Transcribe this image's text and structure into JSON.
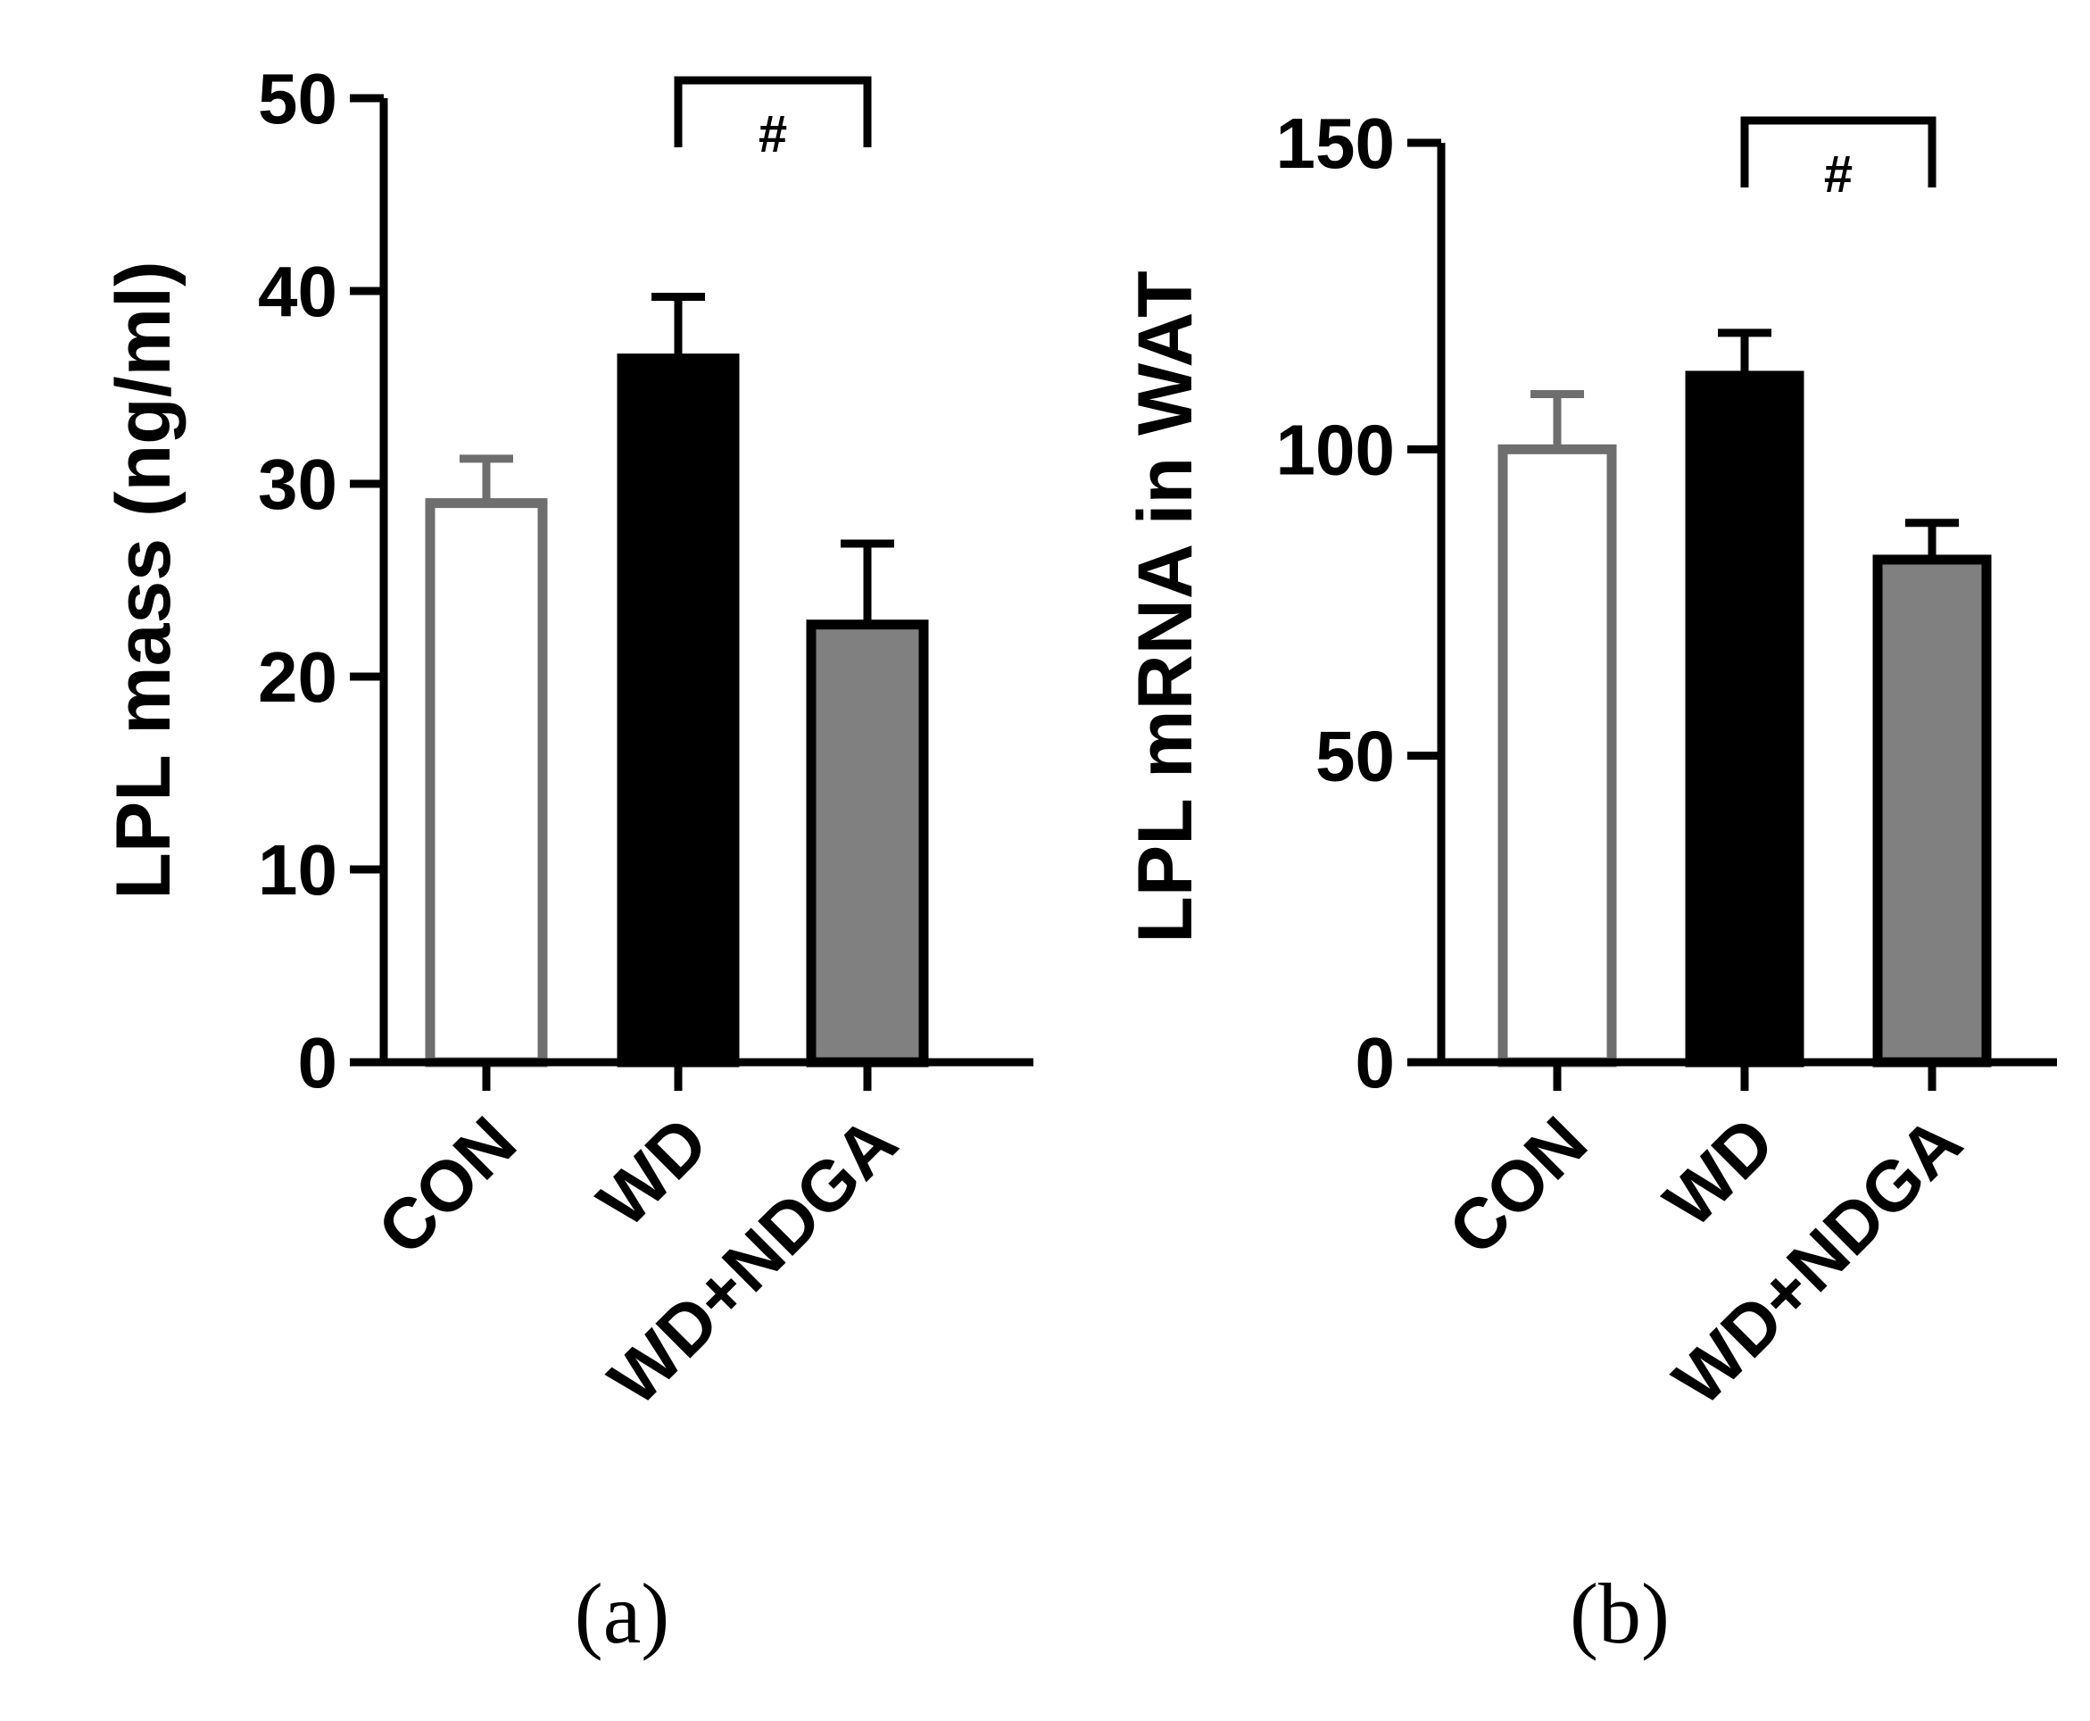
{
  "chart_data": [
    {
      "panel_label": "(a)",
      "type": "bar",
      "ylabel": "LPL mass (ng/ml)",
      "categories": [
        "CON",
        "WD",
        "WD+NDGA"
      ],
      "values": [
        29,
        36.5,
        22.7
      ],
      "errors": [
        2.3,
        3.2,
        4.2
      ],
      "ylim": [
        0,
        50
      ],
      "yticks": [
        "0",
        "10",
        "20",
        "30",
        "40",
        "50"
      ],
      "tick_values": [
        0,
        10,
        20,
        30,
        40,
        50
      ],
      "significance": {
        "from": "WD",
        "to": "WD+NDGA",
        "label": "#"
      },
      "bar_fill": [
        "#ffffff",
        "#000000",
        "#808080"
      ],
      "bar_stroke": [
        "#6e6e6e",
        "#000000",
        "#000000"
      ]
    },
    {
      "panel_label": "(b)",
      "type": "bar",
      "ylabel": "LPL mRNA in WAT",
      "categories": [
        "CON",
        "WD",
        "WD+NDGA"
      ],
      "values": [
        100,
        112,
        82
      ],
      "errors": [
        9,
        7,
        6
      ],
      "ylim": [
        0,
        150
      ],
      "yticks": [
        "0",
        "50",
        "100",
        "150"
      ],
      "tick_values": [
        0,
        50,
        100,
        150
      ],
      "significance": {
        "from": "WD",
        "to": "WD+NDGA",
        "label": "#"
      },
      "bar_fill": [
        "#ffffff",
        "#000000",
        "#808080"
      ],
      "bar_stroke": [
        "#6e6e6e",
        "#000000",
        "#000000"
      ]
    }
  ]
}
